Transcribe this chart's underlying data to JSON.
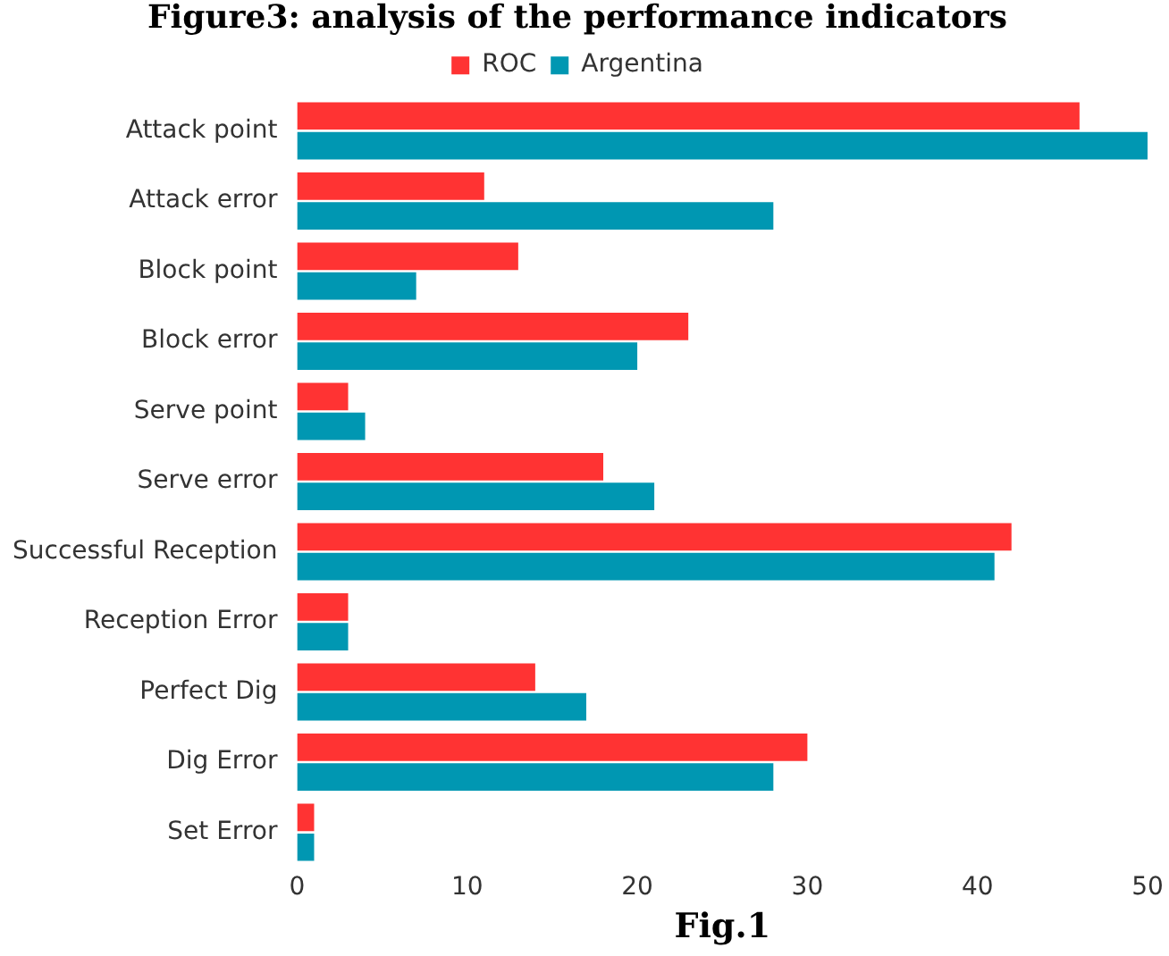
{
  "chart_data": {
    "type": "bar",
    "orientation": "horizontal",
    "title": "Figure3: analysis of the performance indicators",
    "xlabel": "Fig.1",
    "categories": [
      "Attack point",
      "Attack error",
      "Block point",
      "Block error",
      "Serve point",
      "Serve error",
      "Successful Reception",
      "Reception Error",
      "Perfect Dig",
      "Dig Error",
      "Set Error"
    ],
    "series": [
      {
        "name": "ROC",
        "color": "#ff3333",
        "values": [
          46,
          11,
          13,
          23,
          3,
          18,
          42,
          3,
          14,
          30,
          1
        ]
      },
      {
        "name": "Argentina",
        "color": "#0097b2",
        "values": [
          50,
          28,
          7,
          20,
          4,
          21,
          41,
          3,
          17,
          28,
          1
        ]
      }
    ],
    "xlim": [
      0,
      50
    ],
    "xticks": [
      0,
      10,
      20,
      30,
      40,
      50
    ],
    "grid": false,
    "legend": "top"
  }
}
